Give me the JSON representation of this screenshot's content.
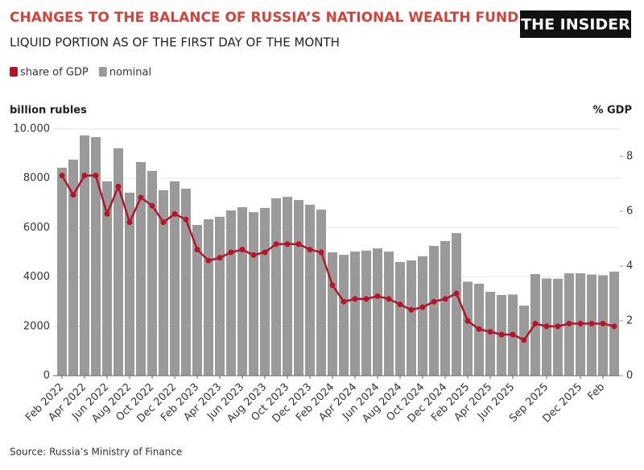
{
  "header": {
    "title": "CHANGES TO THE BALANCE OF RUSSIA’S NATIONAL WEALTH FUND",
    "subtitle": "LIQUID PORTION AS OF THE FIRST DAY OF THE MONTH",
    "logo": "THE INSIDER"
  },
  "chart_data": {
    "type": "bar_line",
    "y_label": "billion rubles",
    "y2_label": "% GDP",
    "categories": [
      "Feb 2022",
      null,
      "Apr 2022",
      null,
      "Jun 2022",
      null,
      "Aug 2022",
      null,
      "Oct 2022",
      null,
      "Dec 2022",
      null,
      "Feb 2023",
      null,
      "Apr 2023",
      null,
      "Jun 2023",
      null,
      "Aug 2023",
      null,
      "Oct 2023",
      null,
      "Dec 2023",
      null,
      "Feb 2024",
      null,
      "Apr 2024",
      null,
      "Jun 2024",
      null,
      "Aug 2024",
      null,
      "Oct 2024",
      null,
      "Dec 2024",
      null,
      "Feb 2025",
      null,
      "Apr 2025",
      null,
      "Jun 2025",
      null,
      null,
      "Sep 2025",
      null,
      null,
      "Dec 2025",
      null,
      "Feb",
      null
    ],
    "series": [
      {
        "name": "nominal",
        "color": "#9a9a9a",
        "kind": "bar",
        "axis": "y",
        "values": [
          8430,
          8760,
          9740,
          9670,
          7880,
          9220,
          7420,
          8660,
          8300,
          7520,
          7880,
          7580,
          6110,
          6340,
          6440,
          6700,
          6830,
          6630,
          6800,
          7190,
          7250,
          7120,
          6930,
          6730,
          5000,
          4900,
          5030,
          5070,
          5160,
          5030,
          4610,
          4670,
          4840,
          5260,
          5460,
          5780,
          3810,
          3730,
          3400,
          3270,
          3290,
          2840,
          4120,
          3940,
          3930,
          4150,
          4150,
          4100,
          4070,
          4220
        ]
      },
      {
        "name": "share of GDP",
        "color": "#b5152b",
        "kind": "line",
        "axis": "y2",
        "values": [
          7.3,
          6.6,
          7.3,
          7.3,
          5.9,
          6.9,
          5.6,
          6.5,
          6.2,
          5.6,
          5.9,
          5.7,
          4.6,
          4.2,
          4.3,
          4.5,
          4.6,
          4.4,
          4.5,
          4.8,
          4.8,
          4.8,
          4.6,
          4.5,
          3.3,
          2.7,
          2.8,
          2.8,
          2.9,
          2.8,
          2.6,
          2.4,
          2.5,
          2.7,
          2.8,
          3.0,
          2.0,
          1.7,
          1.6,
          1.5,
          1.5,
          1.3,
          1.9,
          1.8,
          1.8,
          1.9,
          1.9,
          1.9,
          1.9,
          1.8
        ]
      }
    ],
    "ylim": [
      0,
      10000
    ],
    "yticks": [
      0,
      2000,
      4000,
      6000,
      8000,
      {
        "value": 10000,
        "label": "10.000"
      }
    ],
    "y2lim": [
      0,
      9
    ],
    "y2ticks": [
      0,
      2,
      4,
      6,
      8
    ],
    "legend_order": [
      1,
      0
    ]
  },
  "footer": {
    "source": "Source: Russia’s Ministry of Finance"
  }
}
